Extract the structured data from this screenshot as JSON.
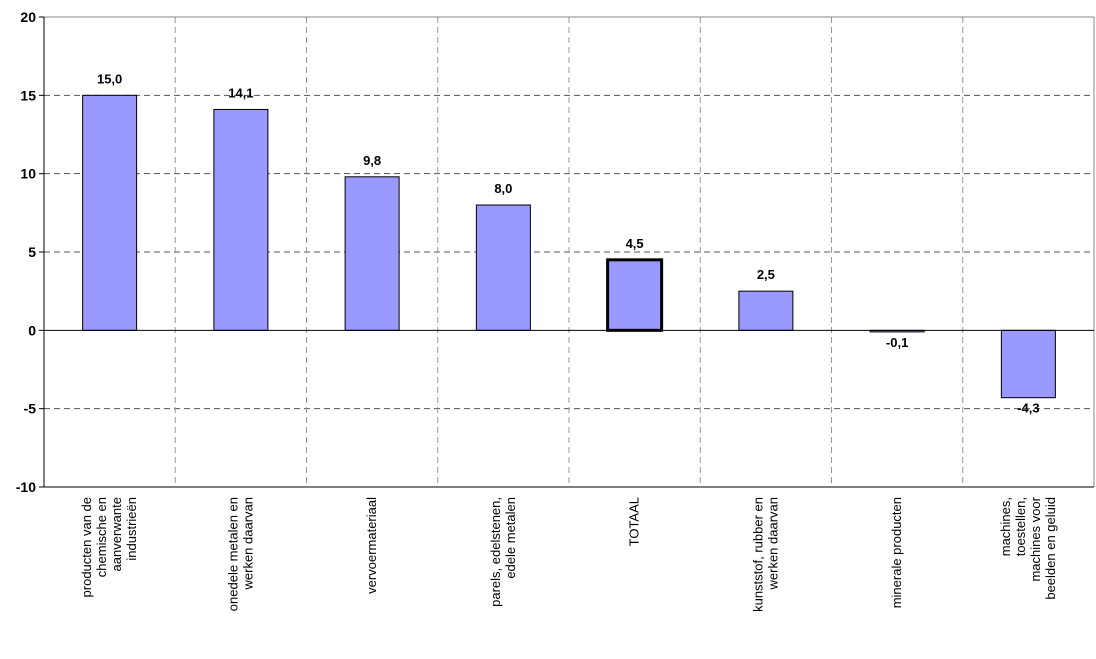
{
  "chart_data": {
    "type": "bar",
    "title": "",
    "xlabel": "",
    "ylabel": "",
    "ylim": [
      -10,
      20
    ],
    "yticks": [
      20,
      15,
      10,
      5,
      0,
      -5,
      -10
    ],
    "grid": true,
    "grid_style": "dashed",
    "categories": [
      [
        "producten van de",
        "chemische en",
        "aanverwante",
        "industrieën"
      ],
      [
        "onedele metalen en",
        "werken daarvan"
      ],
      [
        "vervoermateriaal"
      ],
      [
        "parels, edelstenen,",
        "edele metalen"
      ],
      [
        "TOTAAL"
      ],
      [
        "kunststof, rubber en",
        "werken daarvan"
      ],
      [
        "minerale producten"
      ],
      [
        "machines,",
        "toestellen,",
        "machines voor",
        "beelden en geluid"
      ]
    ],
    "values": [
      15.0,
      14.1,
      9.8,
      8.0,
      4.5,
      2.5,
      -0.1,
      -4.3
    ],
    "data_labels": [
      "15,0",
      "14,1",
      "9,8",
      "8,0",
      "4,5",
      "2,5",
      "-0,1",
      "-4,3"
    ],
    "highlight_index": 4,
    "bar_color": "#9999ff",
    "bar_edge_color": "#000000"
  }
}
